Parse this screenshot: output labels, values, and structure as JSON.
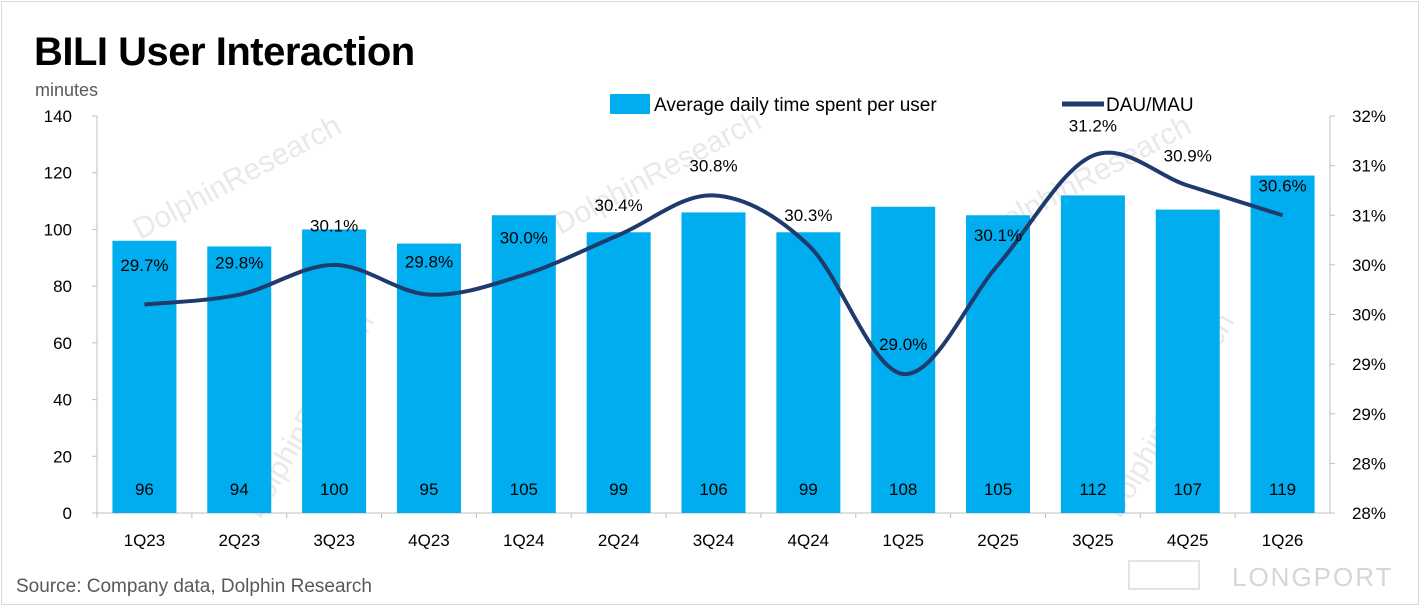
{
  "title": "BILI User Interaction",
  "source": "Source: Company data, Dolphin Research",
  "watermark": {
    "brand": "LONGPORT",
    "text": "DolphinResearch"
  },
  "colors": {
    "bar": "#00AEEF",
    "line": "#1F3B6E"
  },
  "chart_data": {
    "type": "bar",
    "title": "BILI User Interaction",
    "ylabel": "minutes",
    "ylim": [
      0,
      140
    ],
    "yticks": [
      0,
      20,
      40,
      60,
      80,
      100,
      120,
      140
    ],
    "y2ticks": [
      "28%",
      "28%",
      "29%",
      "29%",
      "30%",
      "30%",
      "31%",
      "31%",
      "32%"
    ],
    "categories": [
      "1Q23",
      "2Q23",
      "3Q23",
      "4Q23",
      "1Q24",
      "2Q24",
      "3Q24",
      "4Q24",
      "1Q25",
      "2Q25",
      "3Q25",
      "4Q25",
      "1Q26"
    ],
    "series": [
      {
        "name": "Average daily time spent per user",
        "type": "bar",
        "axis": "left",
        "values": [
          96,
          94,
          100,
          95,
          105,
          99,
          106,
          99,
          108,
          105,
          112,
          107,
          119
        ]
      },
      {
        "name": "DAU/MAU",
        "type": "line",
        "axis": "right",
        "values": [
          29.7,
          29.8,
          30.1,
          29.8,
          30.0,
          30.4,
          30.8,
          30.3,
          29.0,
          30.1,
          31.2,
          30.9,
          30.6
        ],
        "labels": [
          "29.7%",
          "29.8%",
          "30.1%",
          "29.8%",
          "30.0%",
          "30.4%",
          "30.8%",
          "30.3%",
          "29.0%",
          "30.1%",
          "31.2%",
          "30.9%",
          "30.6%"
        ]
      }
    ],
    "y2lim": [
      27.6,
      31.6
    ],
    "legend": "top-center",
    "grid": false
  }
}
